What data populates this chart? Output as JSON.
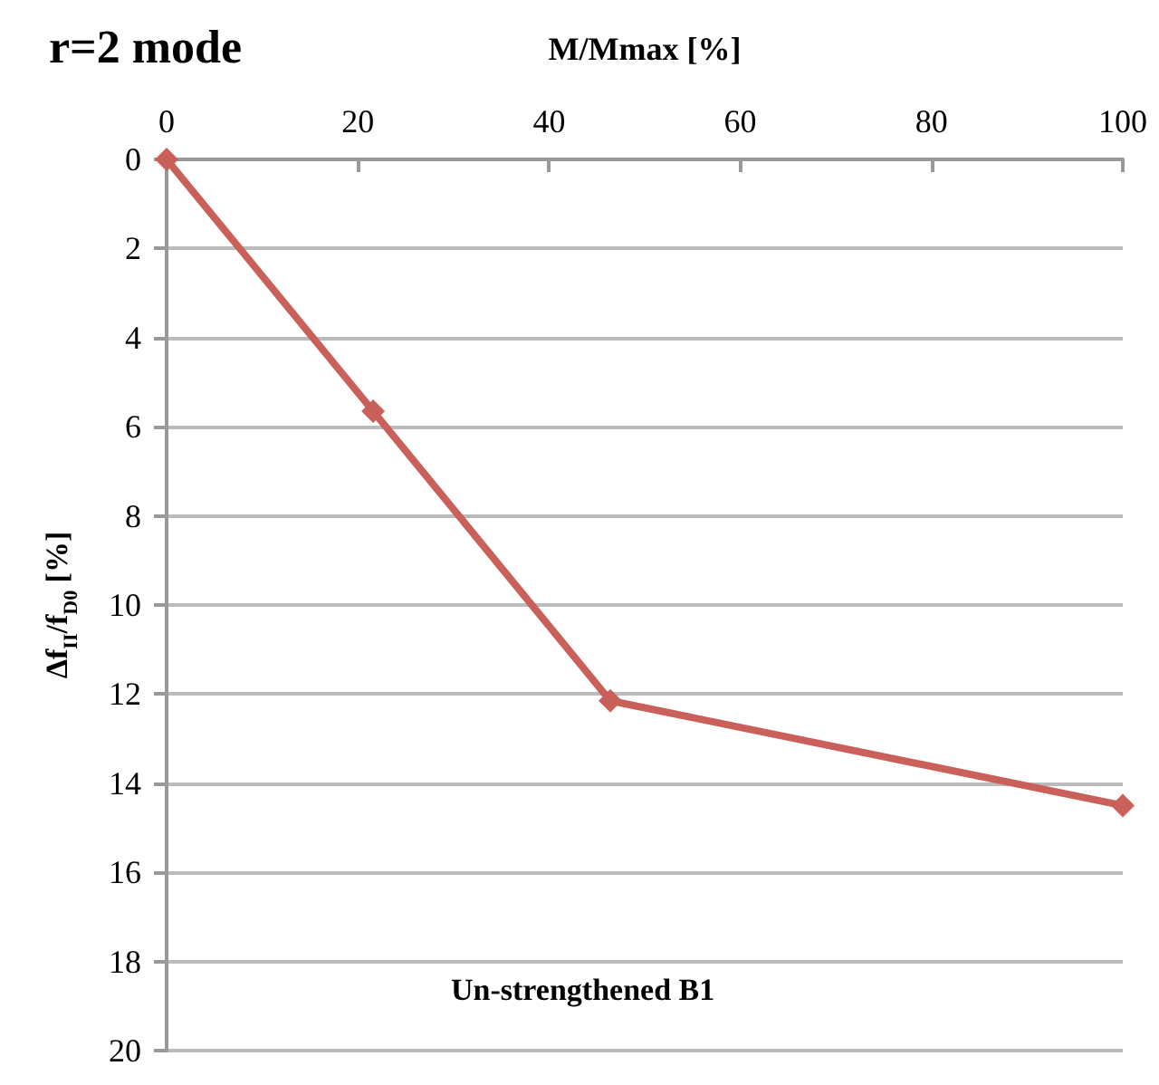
{
  "chart_data": {
    "type": "line",
    "title": "r=2 mode",
    "xlabel": "M/Mmax [%]",
    "ylabel": "Δf$_{II}$/f$_{D0}$ [%]",
    "annotations": [
      "Un-strengthened B1"
    ],
    "x": [
      0,
      21.6,
      46.4,
      100
    ],
    "series": [
      {
        "color": "#c9605a",
        "values": [
          0,
          5.65,
          12.15,
          14.5
        ]
      }
    ],
    "xlim": [
      0,
      100
    ],
    "xticks": [
      0,
      20,
      40,
      60,
      80,
      100
    ],
    "ylim": [
      20,
      0
    ],
    "yticks": [
      0,
      2,
      4,
      6,
      8,
      10,
      12,
      14,
      16,
      18,
      20
    ],
    "grid": "y",
    "marker": "diamond",
    "line_style": "solid"
  }
}
